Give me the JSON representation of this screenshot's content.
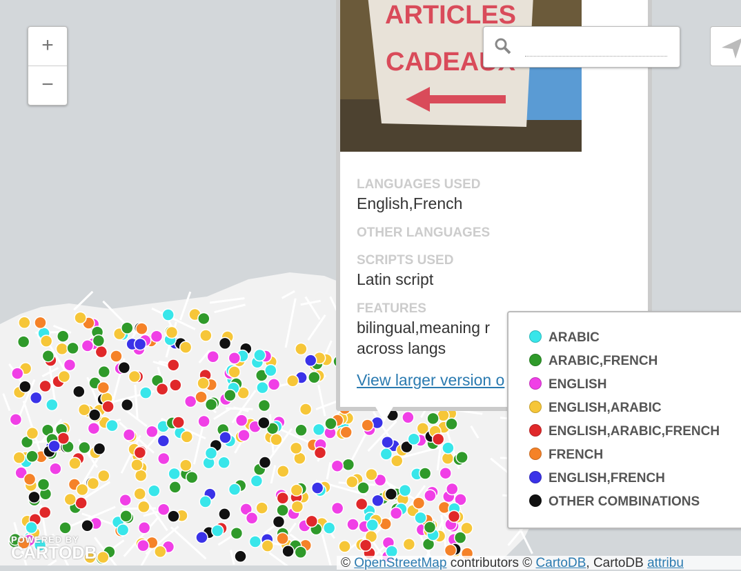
{
  "zoom": {
    "in": "+",
    "out": "−"
  },
  "photo": {
    "sign_lines": [
      "ARTICLES",
      "CADEAUX"
    ]
  },
  "popup": {
    "fields": [
      {
        "label": "LANGUAGES USED",
        "value": "English,French"
      },
      {
        "label": "OTHER LANGUAGES"
      },
      {
        "label": "SCRIPTS USED",
        "value": "Latin script"
      },
      {
        "label": "FEATURES",
        "value": [
          "bilingual,meaning r",
          "across langs"
        ]
      }
    ],
    "link": "View larger version o"
  },
  "legend": {
    "items": [
      {
        "label": "ARABIC",
        "color": "#38e6ea"
      },
      {
        "label": "ARABIC,FRENCH",
        "color": "#2f9a2a"
      },
      {
        "label": "ENGLISH",
        "color": "#f03fe6"
      },
      {
        "label": "ENGLISH,ARABIC",
        "color": "#f6c638"
      },
      {
        "label": "ENGLISH,ARABIC,FRENCH",
        "color": "#e0282a"
      },
      {
        "label": "FRENCH",
        "color": "#f58228"
      },
      {
        "label": "ENGLISH,FRENCH",
        "color": "#3a32e8"
      },
      {
        "label": "OTHER COMBINATIONS",
        "color": "#111111"
      }
    ]
  },
  "branding": {
    "powered": "POWERED BY",
    "name": "CARTODB"
  },
  "attribution": [
    "©",
    "OpenStreetMap",
    "contributors ©",
    "CartoDB",
    ", CartoDB",
    "attribu"
  ]
}
